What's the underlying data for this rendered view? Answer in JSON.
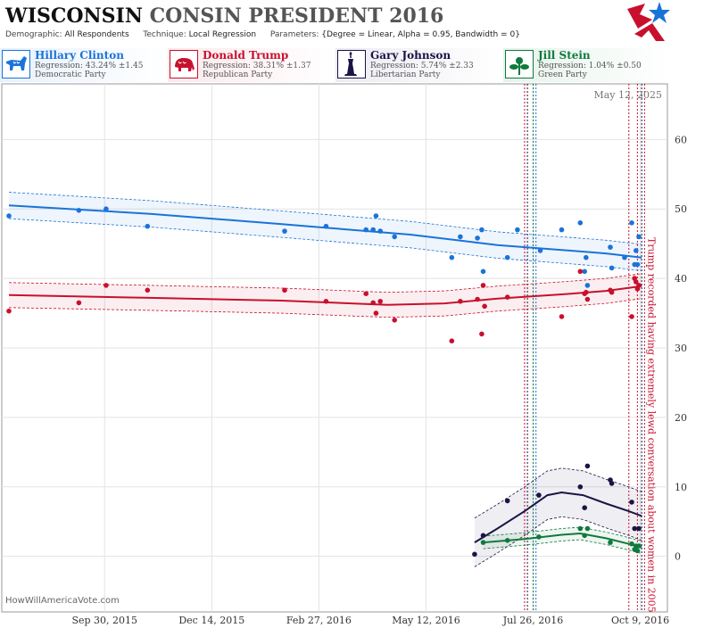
{
  "header": {
    "title_state": "WISCONSIN",
    "title_rest": "CONSIN PRESIDENT 2016",
    "demographic_label": "Demographic:",
    "demographic_value": "All Respondents",
    "technique_label": "Technique:",
    "technique_value": "Local Regression",
    "parameters_label": "Parameters:",
    "parameters_value": "{Degree = Linear, Alpha = 0.95, Bandwidth = 0}"
  },
  "candidates": [
    {
      "name": "Hillary Clinton",
      "regression": "Regression: 43.24% ±1.45",
      "party": "Democratic Party",
      "color": "#1a73d9",
      "bg": "#e8f1fc",
      "icon": "donkey-icon"
    },
    {
      "name": "Donald Trump",
      "regression": "Regression: 38.31% ±1.37",
      "party": "Republican Party",
      "color": "#c8102e",
      "bg": "#fbe9ec",
      "icon": "elephant-icon"
    },
    {
      "name": "Gary Johnson",
      "regression": "Regression: 5.74% ±2.33",
      "party": "Libertarian Party",
      "color": "#1a1446",
      "bg": "#ecebf2",
      "icon": "statue-of-liberty-icon"
    },
    {
      "name": "Jill Stein",
      "regression": "Regression: 1.04% ±0.50",
      "party": "Green Party",
      "color": "#0f7a3e",
      "bg": "#e6f3ea",
      "icon": "flower-icon"
    }
  ],
  "footer": "HowWillAmericaVote.com",
  "chart_data": {
    "type": "scatter",
    "date_label": "May 12, 2025",
    "annotation": "Trump recorded having extremely lewd conversation about women in 2005",
    "xlim": [
      "2015-07-20",
      "2016-10-28"
    ],
    "ylim": [
      -8,
      68
    ],
    "y_ticks": [
      0,
      10,
      20,
      30,
      40,
      50,
      60
    ],
    "x_ticks": [
      {
        "date": "2015-09-30",
        "label": "Sep 30, 2015"
      },
      {
        "date": "2015-12-14",
        "label": "Dec 14, 2015"
      },
      {
        "date": "2016-02-27",
        "label": "Feb 27, 2016"
      },
      {
        "date": "2016-05-12",
        "label": "May 12, 2016"
      },
      {
        "date": "2016-07-26",
        "label": "Jul 26, 2016"
      },
      {
        "date": "2016-10-09",
        "label": "Oct 9, 2016"
      }
    ],
    "event_lines": [
      {
        "date": "2016-07-20",
        "color": "#c8102e"
      },
      {
        "date": "2016-07-22",
        "color": "#1a1446"
      },
      {
        "date": "2016-07-26",
        "color": "#0f7a3e"
      },
      {
        "date": "2016-07-28",
        "color": "#1a73d9"
      },
      {
        "date": "2016-10-01",
        "color": "#c8102e"
      },
      {
        "date": "2016-10-07",
        "color": "#c8102e"
      },
      {
        "date": "2016-10-10",
        "color": "#1a1446"
      },
      {
        "date": "2016-10-12",
        "color": "#c8102e"
      }
    ],
    "grid": true,
    "series": [
      {
        "name": "Hillary Clinton",
        "color": "#1a73d9",
        "points": [
          [
            "2015-07-25",
            49
          ],
          [
            "2015-09-12",
            49.8
          ],
          [
            "2015-10-01",
            50
          ],
          [
            "2015-10-30",
            47.5
          ],
          [
            "2016-02-03",
            46.8
          ],
          [
            "2016-03-03",
            47.5
          ],
          [
            "2016-03-31",
            47
          ],
          [
            "2016-04-05",
            47
          ],
          [
            "2016-04-07",
            49
          ],
          [
            "2016-04-10",
            46.8
          ],
          [
            "2016-04-20",
            46
          ],
          [
            "2016-05-30",
            43
          ],
          [
            "2016-06-05",
            46
          ],
          [
            "2016-06-17",
            45.8
          ],
          [
            "2016-06-20",
            47
          ],
          [
            "2016-06-21",
            41
          ],
          [
            "2016-07-08",
            43
          ],
          [
            "2016-07-15",
            47
          ],
          [
            "2016-07-31",
            44
          ],
          [
            "2016-08-15",
            47
          ],
          [
            "2016-08-28",
            48
          ],
          [
            "2016-08-31",
            41
          ],
          [
            "2016-09-01",
            43
          ],
          [
            "2016-09-02",
            39
          ],
          [
            "2016-09-18",
            44.5
          ],
          [
            "2016-09-19",
            41.5
          ],
          [
            "2016-09-28",
            43
          ],
          [
            "2016-10-03",
            48
          ],
          [
            "2016-10-05",
            42
          ],
          [
            "2016-10-06",
            44
          ],
          [
            "2016-10-07",
            42
          ],
          [
            "2016-10-08",
            46
          ]
        ],
        "fit": [
          [
            "2015-07-25",
            50.5
          ],
          [
            "2015-11-01",
            49.3
          ],
          [
            "2016-02-01",
            47.8
          ],
          [
            "2016-05-01",
            46.3
          ],
          [
            "2016-07-01",
            44.8
          ],
          [
            "2016-08-15",
            44.1
          ],
          [
            "2016-09-15",
            43.6
          ],
          [
            "2016-10-10",
            43
          ]
        ],
        "band": 1.9
      },
      {
        "name": "Donald Trump",
        "color": "#c8102e",
        "points": [
          [
            "2015-07-25",
            35.3
          ],
          [
            "2015-09-12",
            36.5
          ],
          [
            "2015-10-01",
            39
          ],
          [
            "2015-10-30",
            38.3
          ],
          [
            "2016-02-03",
            38.3
          ],
          [
            "2016-03-03",
            36.7
          ],
          [
            "2016-03-31",
            37.8
          ],
          [
            "2016-04-05",
            36.5
          ],
          [
            "2016-04-07",
            35
          ],
          [
            "2016-04-10",
            36.7
          ],
          [
            "2016-04-20",
            34
          ],
          [
            "2016-05-30",
            31
          ],
          [
            "2016-06-05",
            36.7
          ],
          [
            "2016-06-17",
            37
          ],
          [
            "2016-06-20",
            32
          ],
          [
            "2016-06-21",
            39
          ],
          [
            "2016-06-22",
            36
          ],
          [
            "2016-07-08",
            37.3
          ],
          [
            "2016-08-15",
            34.5
          ],
          [
            "2016-08-28",
            41
          ],
          [
            "2016-08-31",
            37.8
          ],
          [
            "2016-09-01",
            38
          ],
          [
            "2016-09-02",
            37
          ],
          [
            "2016-09-18",
            38.3
          ],
          [
            "2016-09-19",
            38
          ],
          [
            "2016-10-03",
            34.5
          ],
          [
            "2016-10-05",
            40
          ],
          [
            "2016-10-06",
            39.5
          ],
          [
            "2016-10-07",
            38.5
          ],
          [
            "2016-10-08",
            39
          ]
        ],
        "fit": [
          [
            "2015-07-25",
            37.6
          ],
          [
            "2015-11-01",
            37.2
          ],
          [
            "2016-02-01",
            36.8
          ],
          [
            "2016-04-15",
            36.2
          ],
          [
            "2016-05-25",
            36.4
          ],
          [
            "2016-07-01",
            37.1
          ],
          [
            "2016-08-15",
            37.7
          ],
          [
            "2016-09-15",
            38.2
          ],
          [
            "2016-10-10",
            38.9
          ]
        ],
        "band": 1.8
      },
      {
        "name": "Gary Johnson",
        "color": "#1a1446",
        "points": [
          [
            "2016-06-15",
            0.3
          ],
          [
            "2016-06-21",
            3
          ],
          [
            "2016-07-08",
            8
          ],
          [
            "2016-07-30",
            8.8
          ],
          [
            "2016-08-28",
            10
          ],
          [
            "2016-08-31",
            7
          ],
          [
            "2016-09-02",
            13
          ],
          [
            "2016-09-18",
            11
          ],
          [
            "2016-09-19",
            10.5
          ],
          [
            "2016-10-03",
            7.8
          ],
          [
            "2016-10-05",
            4
          ],
          [
            "2016-10-08",
            4
          ]
        ],
        "fit": [
          [
            "2016-06-15",
            2
          ],
          [
            "2016-07-01",
            4
          ],
          [
            "2016-07-20",
            6.5
          ],
          [
            "2016-08-05",
            8.8
          ],
          [
            "2016-08-15",
            9.2
          ],
          [
            "2016-08-30",
            8.8
          ],
          [
            "2016-09-15",
            7.6
          ],
          [
            "2016-10-01",
            6.5
          ],
          [
            "2016-10-10",
            5.8
          ]
        ],
        "band": 3.5
      },
      {
        "name": "Jill Stein",
        "color": "#0f7a3e",
        "points": [
          [
            "2016-06-21",
            2
          ],
          [
            "2016-07-08",
            2.3
          ],
          [
            "2016-07-30",
            2.8
          ],
          [
            "2016-08-28",
            4
          ],
          [
            "2016-08-31",
            3
          ],
          [
            "2016-09-02",
            4
          ],
          [
            "2016-09-18",
            2
          ],
          [
            "2016-10-03",
            1.8
          ],
          [
            "2016-10-05",
            1
          ],
          [
            "2016-10-06",
            1.5
          ],
          [
            "2016-10-07",
            0.8
          ],
          [
            "2016-10-08",
            1.5
          ]
        ],
        "fit": [
          [
            "2016-06-21",
            2
          ],
          [
            "2016-07-20",
            2.5
          ],
          [
            "2016-08-15",
            3.1
          ],
          [
            "2016-08-28",
            3.3
          ],
          [
            "2016-09-15",
            2.6
          ],
          [
            "2016-10-01",
            1.8
          ],
          [
            "2016-10-10",
            1.3
          ]
        ],
        "band": 0.9
      }
    ]
  }
}
